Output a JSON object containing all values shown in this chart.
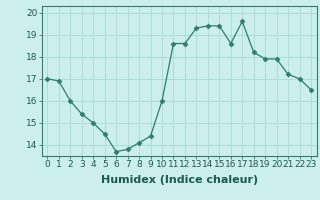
{
  "x": [
    0,
    1,
    2,
    3,
    4,
    5,
    6,
    7,
    8,
    9,
    10,
    11,
    12,
    13,
    14,
    15,
    16,
    17,
    18,
    19,
    20,
    21,
    22,
    23
  ],
  "y": [
    17.0,
    16.9,
    16.0,
    15.4,
    15.0,
    14.5,
    13.7,
    13.8,
    14.1,
    14.4,
    16.0,
    18.6,
    18.6,
    19.3,
    19.4,
    19.4,
    18.6,
    19.6,
    18.2,
    17.9,
    17.9,
    17.2,
    17.0,
    16.5
  ],
  "line_color": "#2e7d6e",
  "marker": "D",
  "marker_size": 2.5,
  "bg_color": "#cceeed",
  "grid_color": "#aaddda",
  "xlabel": "Humidex (Indice chaleur)",
  "ylim": [
    13.5,
    20.3
  ],
  "xlim": [
    -0.5,
    23.5
  ],
  "yticks": [
    14,
    15,
    16,
    17,
    18,
    19,
    20
  ],
  "xticks": [
    0,
    1,
    2,
    3,
    4,
    5,
    6,
    7,
    8,
    9,
    10,
    11,
    12,
    13,
    14,
    15,
    16,
    17,
    18,
    19,
    20,
    21,
    22,
    23
  ],
  "tick_fontsize": 6.5,
  "xlabel_fontsize": 8.0,
  "text_color": "#1a5c52"
}
